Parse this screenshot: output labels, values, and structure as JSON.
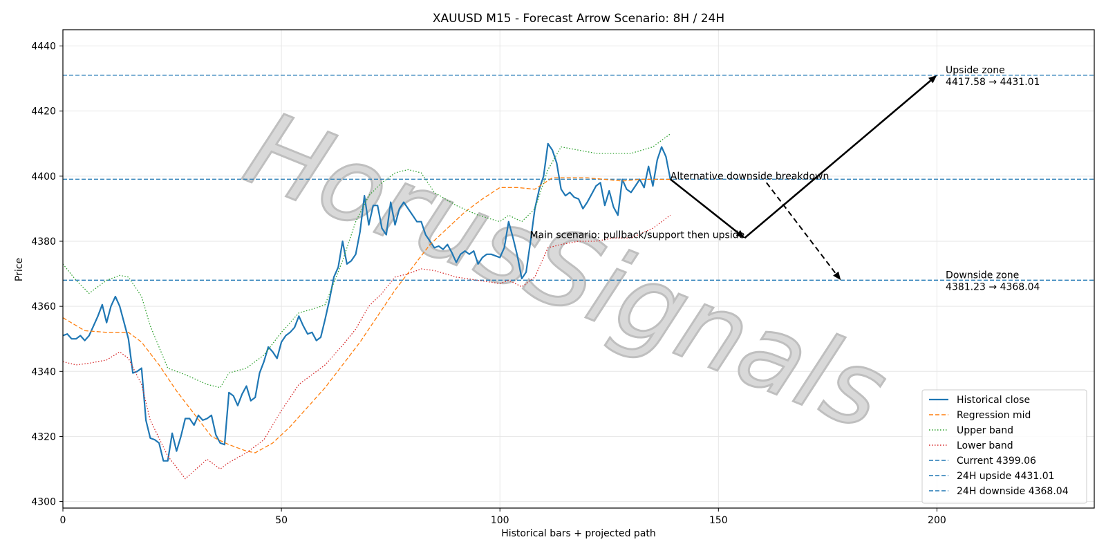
{
  "chart_data": {
    "type": "line",
    "title": "XAUUSD M15 - Forecast Arrow Scenario: 8H / 24H",
    "xlabel": "Historical bars + projected path",
    "ylabel": "Price",
    "xlim": [
      0,
      236
    ],
    "ylim": [
      4298,
      4445
    ],
    "xticks": [
      0,
      50,
      100,
      150,
      200
    ],
    "yticks": [
      4300,
      4320,
      4340,
      4360,
      4380,
      4400,
      4420,
      4440
    ],
    "grid": true,
    "legend_position": "lower-right",
    "watermark": "HorusSignals",
    "series": [
      {
        "name": "Historical close",
        "style": "solid",
        "color": "#1f77b4",
        "x": [
          0,
          1,
          2,
          3,
          4,
          5,
          6,
          7,
          8,
          9,
          10,
          11,
          12,
          13,
          14,
          15,
          16,
          17,
          18,
          19,
          20,
          21,
          22,
          23,
          24,
          25,
          26,
          27,
          28,
          29,
          30,
          31,
          32,
          33,
          34,
          35,
          36,
          37,
          38,
          39,
          40,
          41,
          42,
          43,
          44,
          45,
          46,
          47,
          48,
          49,
          50,
          51,
          52,
          53,
          54,
          55,
          56,
          57,
          58,
          59,
          60,
          61,
          62,
          63,
          64,
          65,
          66,
          67,
          68,
          69,
          70,
          71,
          72,
          73,
          74,
          75,
          76,
          77,
          78,
          79,
          80,
          81,
          82,
          83,
          84,
          85,
          86,
          87,
          88,
          89,
          90,
          91,
          92,
          93,
          94,
          95,
          96,
          97,
          98,
          99,
          100,
          101,
          102,
          103,
          104,
          105,
          106,
          107,
          108,
          109,
          110,
          111,
          112,
          113,
          114,
          115,
          116,
          117,
          118,
          119,
          120,
          121,
          122,
          123,
          124,
          125,
          126,
          127,
          128,
          129,
          130,
          131,
          132,
          133,
          134,
          135,
          136,
          137,
          138,
          139
        ],
        "values": [
          4351,
          4351.5,
          4350,
          4350,
          4351,
          4349.5,
          4351,
          4354,
          4357,
          4360.5,
          4355,
          4360,
          4363,
          4360,
          4355,
          4350,
          4339.5,
          4340,
          4341,
          4325,
          4319.5,
          4319,
          4318,
          4312.5,
          4312.5,
          4321,
          4315.5,
          4320,
          4325.5,
          4325.5,
          4323.5,
          4326.5,
          4325,
          4325.5,
          4326.5,
          4320.5,
          4318,
          4317.5,
          4333.5,
          4332.5,
          4329.5,
          4333,
          4335.5,
          4331,
          4332,
          4339.5,
          4343,
          4347.5,
          4346,
          4344,
          4349,
          4351,
          4352,
          4353.5,
          4357,
          4354,
          4351.5,
          4352,
          4349.5,
          4350.5,
          4356,
          4362,
          4369,
          4372,
          4380,
          4373,
          4374,
          4376,
          4383,
          4394,
          4385,
          4391,
          4391,
          4384,
          4382,
          4392,
          4385,
          4390,
          4392,
          4390,
          4388,
          4386,
          4386,
          4382,
          4380,
          4378,
          4378.5,
          4377.5,
          4379,
          4376.5,
          4373.5,
          4376,
          4377,
          4376,
          4377,
          4373,
          4375,
          4376,
          4376,
          4375.5,
          4375,
          4378,
          4386,
          4381,
          4375.5,
          4368.5,
          4370.5,
          4380,
          4390,
          4396,
          4400,
          4410,
          4408,
          4404,
          4396,
          4394,
          4395,
          4393.5,
          4393,
          4390,
          4392,
          4394.5,
          4397,
          4398,
          4391,
          4395.5,
          4390.5,
          4388,
          4399,
          4396,
          4395,
          4397,
          4399,
          4396.5,
          4403,
          4397,
          4405,
          4409,
          4406,
          4399
        ]
      },
      {
        "name": "Regression mid",
        "style": "dashed",
        "color": "#ff7f0e",
        "x": [
          0,
          5,
          10,
          15,
          18,
          22,
          26,
          30,
          34,
          38,
          42,
          44,
          48,
          52,
          56,
          60,
          64,
          68,
          72,
          76,
          80,
          84,
          88,
          92,
          96,
          100,
          104,
          108,
          112,
          116,
          120,
          124,
          128,
          132,
          136,
          139
        ],
        "values": [
          4356.5,
          4352.5,
          4352,
          4352,
          4349,
          4342,
          4334,
          4327,
          4320,
          4317.5,
          4315.5,
          4315,
          4318,
          4323,
          4329,
          4335,
          4342,
          4349,
          4357,
          4365,
          4372,
          4379,
          4384,
          4389,
          4393,
          4396.5,
          4396.5,
          4396,
          4399.5,
          4399.5,
          4399.5,
          4399,
          4398.5,
          4399,
          4399,
          4399
        ]
      },
      {
        "name": "Upper band",
        "style": "dotted",
        "color": "#2ca02c",
        "x": [
          0,
          3,
          6,
          10,
          13,
          15,
          18,
          20,
          24,
          28,
          33,
          36,
          38,
          42,
          46,
          50,
          54,
          58,
          60,
          64,
          67,
          70,
          73,
          76,
          79,
          82,
          85,
          90,
          95,
          100,
          102,
          105,
          108,
          111,
          114,
          118,
          122,
          126,
          130,
          135,
          139
        ],
        "values": [
          4373,
          4368,
          4364,
          4368,
          4369.5,
          4369,
          4363,
          4354,
          4341,
          4339,
          4336,
          4335,
          4339.5,
          4341,
          4345,
          4352,
          4358,
          4359.5,
          4360.5,
          4374,
          4386,
          4394,
          4398,
          4401,
          4402,
          4401,
          4395,
          4391,
          4388,
          4386,
          4388,
          4386,
          4390,
          4402,
          4409,
          4408,
          4407,
          4407,
          4407,
          4409,
          4413
        ]
      },
      {
        "name": "Lower band",
        "style": "dotted",
        "color": "#d62728",
        "x": [
          0,
          3,
          6,
          10,
          13,
          15,
          18,
          20,
          24,
          28,
          33,
          36,
          38,
          42,
          46,
          50,
          54,
          58,
          60,
          64,
          67,
          70,
          73,
          76,
          79,
          82,
          85,
          90,
          95,
          100,
          102,
          105,
          108,
          111,
          114,
          118,
          122,
          126,
          130,
          135,
          139
        ],
        "values": [
          4343,
          4342,
          4342.5,
          4343.5,
          4346,
          4344,
          4336,
          4325,
          4314,
          4307,
          4313,
          4310,
          4312,
          4315,
          4319,
          4328,
          4336,
          4340,
          4342,
          4348,
          4353,
          4360,
          4364,
          4369,
          4370,
          4371.5,
          4371,
          4369,
          4368,
          4367,
          4368,
          4366,
          4369,
          4378,
          4379,
          4380,
          4380,
          4381,
          4381,
          4384,
          4388
        ]
      }
    ],
    "reference_lines": [
      {
        "name": "Current 4399.06",
        "y": 4399.06,
        "color": "#1f77b4",
        "style": "dashed"
      },
      {
        "name": "24H upside 4431.01",
        "y": 4431.01,
        "color": "#1f77b4",
        "style": "dashed"
      },
      {
        "name": "24H downside 4368.04",
        "y": 4368.04,
        "color": "#1f77b4",
        "style": "dashed"
      }
    ],
    "arrows": [
      {
        "name": "main-to-pullback",
        "from": [
          139,
          4399.06
        ],
        "to": [
          156,
          4381
        ],
        "style": "solid"
      },
      {
        "name": "pullback-to-upside",
        "from": [
          156,
          4381
        ],
        "to": [
          200,
          4431.01
        ],
        "style": "solid"
      },
      {
        "name": "alternative-downside",
        "from": [
          161,
          4398
        ],
        "to": [
          178,
          4368.04
        ],
        "style": "dashed"
      }
    ],
    "annotations": [
      {
        "name": "annotation-alternative",
        "text": "Alternative downside breakdown",
        "x": 139,
        "y": 4399.06,
        "anchor": "start"
      },
      {
        "name": "annotation-main",
        "text": "Main scenario: pullback/support then upside",
        "x": 156,
        "y": 4381,
        "anchor": "end"
      },
      {
        "name": "annotation-upside-zone",
        "text": "Upside zone",
        "text2": "4417.58 → 4431.01",
        "x": 202,
        "y": 4431.01,
        "anchor": "start"
      },
      {
        "name": "annotation-downside-zone",
        "text": "Downside zone",
        "text2": "4381.23 → 4368.04",
        "x": 202,
        "y": 4368.04,
        "anchor": "start"
      }
    ]
  }
}
